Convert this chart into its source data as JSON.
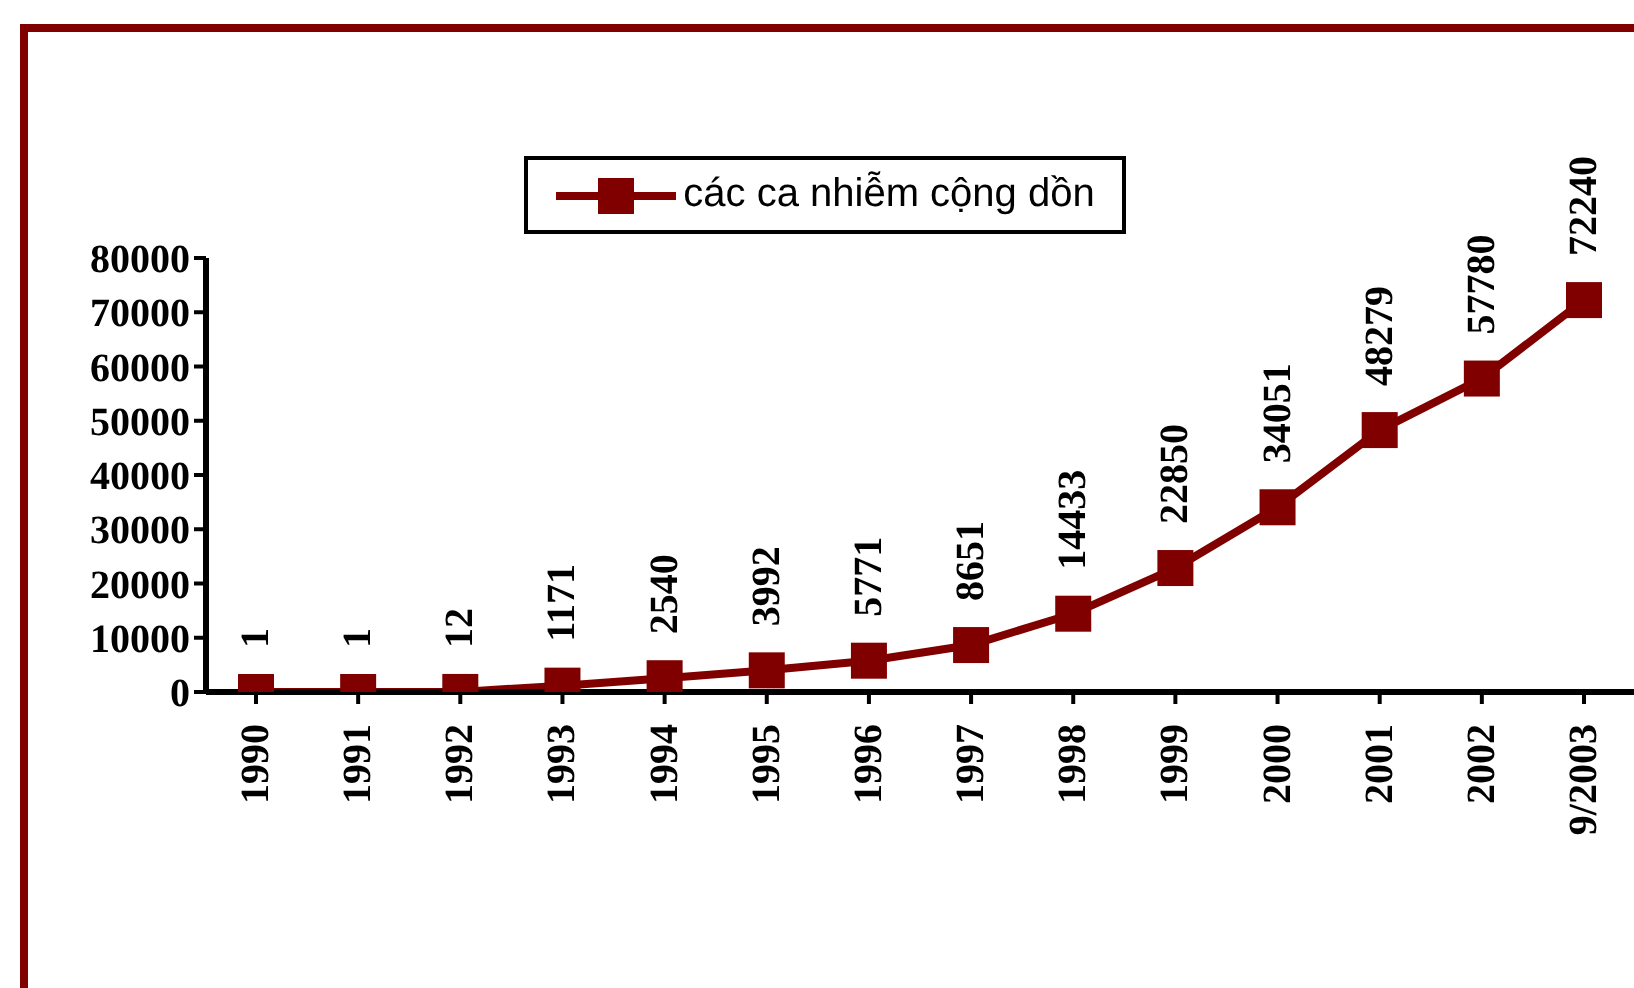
{
  "chart_data": {
    "type": "line",
    "categories": [
      "1990",
      "1991",
      "1992",
      "1993",
      "1994",
      "1995",
      "1996",
      "1997",
      "1998",
      "1999",
      "2000",
      "2001",
      "2002",
      "9/2003"
    ],
    "series": [
      {
        "name": "các ca nhiễm cộng dồn",
        "color": "#800000",
        "values": [
          1,
          1,
          12,
          1171,
          2540,
          3992,
          5771,
          8651,
          14433,
          22850,
          34051,
          48279,
          57780,
          72240
        ]
      }
    ],
    "ylim": [
      0,
      80000
    ],
    "yticks": [
      0,
      10000,
      20000,
      30000,
      40000,
      50000,
      60000,
      70000,
      80000
    ],
    "grid": false,
    "legend": "top",
    "marker": "square",
    "line_style": "solid",
    "data_labels": true
  }
}
